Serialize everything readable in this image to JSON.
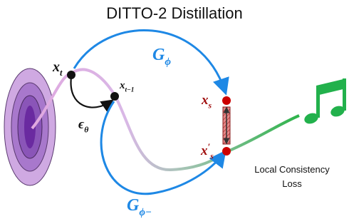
{
  "title": "DITTO-2 Distillation",
  "labels": {
    "x_t": {
      "base": "x",
      "sub": "t"
    },
    "x_t_minus_1": {
      "base": "x",
      "sub": "t−1"
    },
    "epsilon": {
      "base": "ϵ",
      "sub": "θ"
    },
    "g_phi": {
      "base": "G",
      "sub": "ϕ"
    },
    "g_phi_minus": {
      "base": "G",
      "sub": "ϕ−"
    },
    "x_s": {
      "base": "x",
      "sub": "s"
    },
    "x_s_prime": {
      "base": "x",
      "sup": "′",
      "sub": "s"
    }
  },
  "loss_label": [
    "Local Consistency",
    "Loss"
  ]
}
